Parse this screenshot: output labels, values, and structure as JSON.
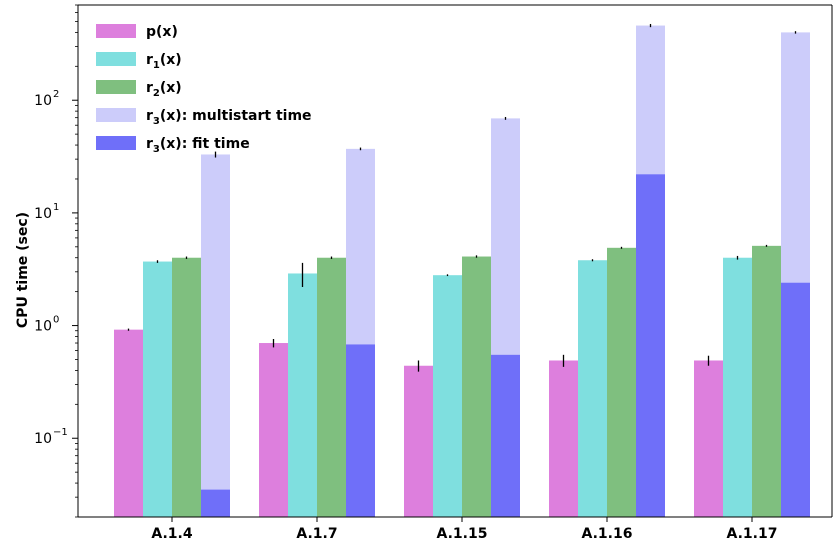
{
  "chart_data": {
    "type": "bar",
    "yscale": "log",
    "ylabel": "CPU time (sec)",
    "xlabel": "",
    "ylim": [
      0.02,
      700
    ],
    "yticks": [
      {
        "value": 0.1,
        "base": "10",
        "exp": "−1"
      },
      {
        "value": 1,
        "base": "10",
        "exp": "0"
      },
      {
        "value": 10,
        "base": "10",
        "exp": "1"
      },
      {
        "value": 100,
        "base": "10",
        "exp": "2"
      }
    ],
    "categories": [
      "A.1.4",
      "A.1.7",
      "A.1.15",
      "A.1.16",
      "A.1.17"
    ],
    "legend_position": "top-left",
    "series": [
      {
        "label_main": "p",
        "label_sub": "",
        "label_rest": "(x)",
        "color": "#dd7fdd",
        "values": [
          0.92,
          0.7,
          0.44,
          0.49,
          0.49
        ],
        "errors": [
          0.02,
          0.06,
          0.05,
          0.06,
          0.05
        ]
      },
      {
        "label_main": "r",
        "label_sub": "1",
        "label_rest": "(x)",
        "color": "#7fdfdf",
        "values": [
          3.7,
          2.9,
          2.8,
          3.8,
          4.0
        ],
        "errors": [
          0.1,
          0.7,
          0.05,
          0.08,
          0.15
        ]
      },
      {
        "label_main": "r",
        "label_sub": "2",
        "label_rest": "(x)",
        "color": "#7fbf7f",
        "values": [
          4.0,
          4.0,
          4.1,
          4.9,
          5.1
        ],
        "errors": [
          0.1,
          0.1,
          0.1,
          0.1,
          0.1
        ]
      },
      {
        "label_main": "r",
        "label_sub": "3",
        "label_rest": "(x):  multistart time",
        "color": "#ccccfa",
        "values": [
          33,
          37,
          69,
          460,
          400
        ],
        "errors": [
          2,
          1,
          2,
          15,
          10
        ]
      },
      {
        "label_main": "r",
        "label_sub": "3",
        "label_rest": "(x):  fit time",
        "color": "#6f6ff9",
        "values": [
          0.035,
          0.68,
          0.55,
          22,
          2.4
        ],
        "errors": [
          0,
          0,
          0,
          0,
          0
        ]
      }
    ]
  }
}
